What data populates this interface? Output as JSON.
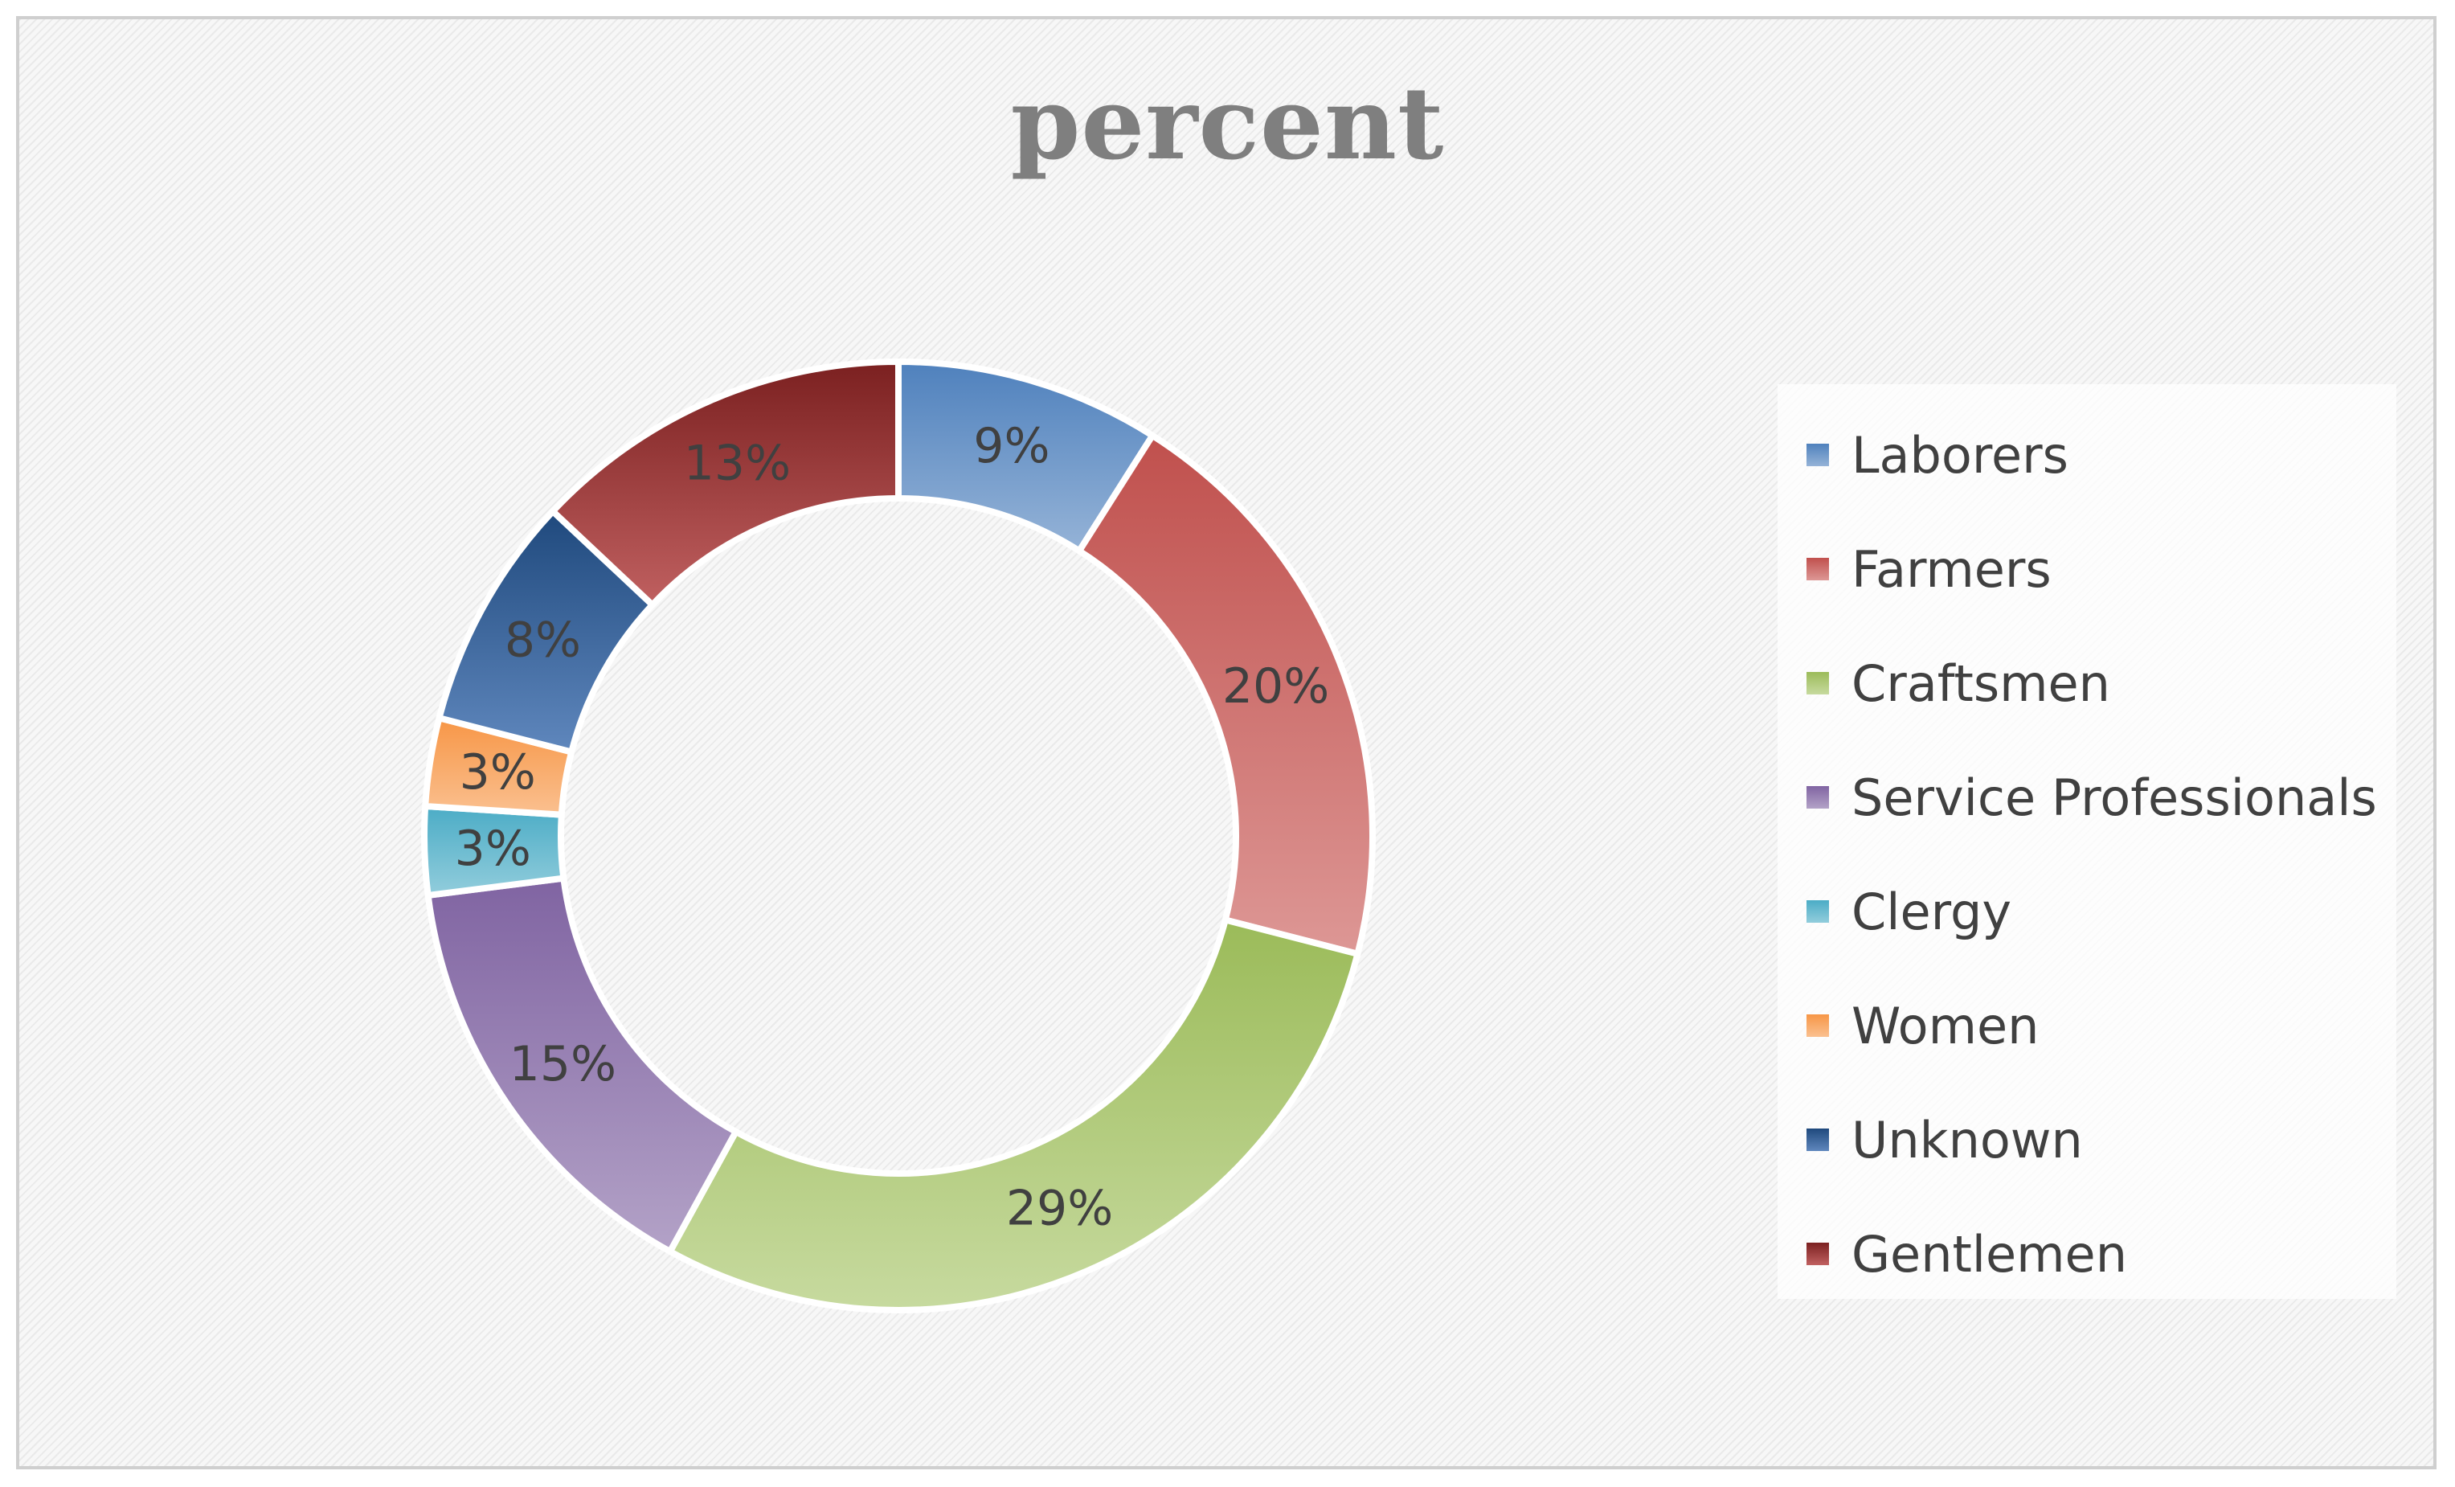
{
  "chart_data": {
    "type": "pie",
    "variant": "donut",
    "title": "percent",
    "legend_position": "right",
    "slices": [
      {
        "label": "Laborers",
        "value": 9,
        "display": "9%",
        "color": "#4f81bd",
        "color_light": "#95b3d7"
      },
      {
        "label": "Farmers",
        "value": 20,
        "display": "20%",
        "color": "#c0504d",
        "color_light": "#dd9795"
      },
      {
        "label": "Craftsmen",
        "value": 29,
        "display": "29%",
        "color": "#9bbb59",
        "color_light": "#c7da9f"
      },
      {
        "label": "Service Professionals",
        "value": 15,
        "display": "15%",
        "color": "#8064a2",
        "color_light": "#b3a2c7"
      },
      {
        "label": "Clergy",
        "value": 3,
        "display": "3%",
        "color": "#4bacc6",
        "color_light": "#92cddc"
      },
      {
        "label": "Women",
        "value": 3,
        "display": "3%",
        "color": "#f79646",
        "color_light": "#fac090"
      },
      {
        "label": "Unknown",
        "value": 8,
        "display": "8%",
        "color": "#1f497d",
        "color_light": "#5f87bd"
      },
      {
        "label": "Gentlemen",
        "value": 13,
        "display": "13%",
        "color": "#7b2020",
        "color_light": "#c06060"
      }
    ]
  }
}
